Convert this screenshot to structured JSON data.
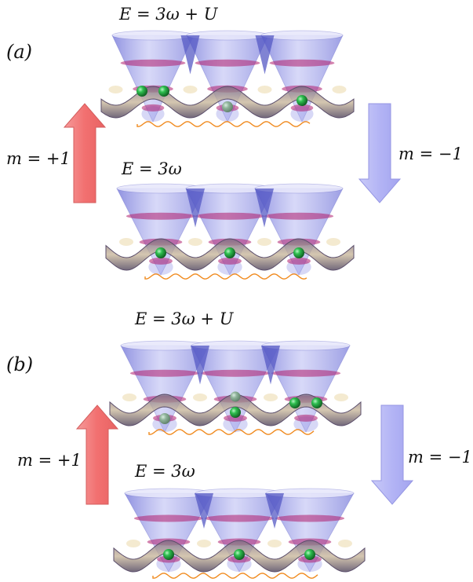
{
  "panels": [
    {
      "label": "(a)",
      "upper_energy": "E = 3ω + U",
      "lower_energy": "E = 3ω",
      "raise_label": "m = +1",
      "lower_label": "m = −1",
      "upper_particles": [
        {
          "well": 0,
          "count": 2,
          "surface": true
        },
        {
          "well": 1,
          "count": 1,
          "surface": false
        },
        {
          "well": 2,
          "count": 1,
          "surface": true
        }
      ],
      "lower_particles": [
        {
          "well": 0,
          "count": 1,
          "surface": true
        },
        {
          "well": 1,
          "count": 1,
          "surface": true
        },
        {
          "well": 2,
          "count": 1,
          "surface": true
        }
      ]
    },
    {
      "label": "(b)",
      "upper_energy": "E = 3ω + U",
      "lower_energy": "E = 3ω",
      "raise_label": "m = +1",
      "lower_label": "m = −1",
      "upper_particles": [
        {
          "well": 0,
          "count": 1,
          "surface": false
        },
        {
          "well": 1,
          "count": 1,
          "surface": true,
          "extra_faded": true
        },
        {
          "well": 2,
          "count": 2,
          "surface": true
        }
      ],
      "lower_particles": [
        {
          "well": 0,
          "count": 1,
          "surface": true
        },
        {
          "well": 1,
          "count": 1,
          "surface": true
        },
        {
          "well": 2,
          "count": 1,
          "surface": true
        }
      ]
    }
  ],
  "colors": {
    "cone_fill": "#8c8fe6",
    "cone_dark": "#5659c4",
    "cone_rim": "#e6e6fa",
    "energy_band": "#b01e6e",
    "surface_light": "#f2e6c8",
    "surface_dark": "#5b4e6b",
    "particle": "#1f9e3a",
    "spring": "#f08a1e",
    "arrow_up": "#f27f7f",
    "arrow_down": "#b8b9f6"
  }
}
